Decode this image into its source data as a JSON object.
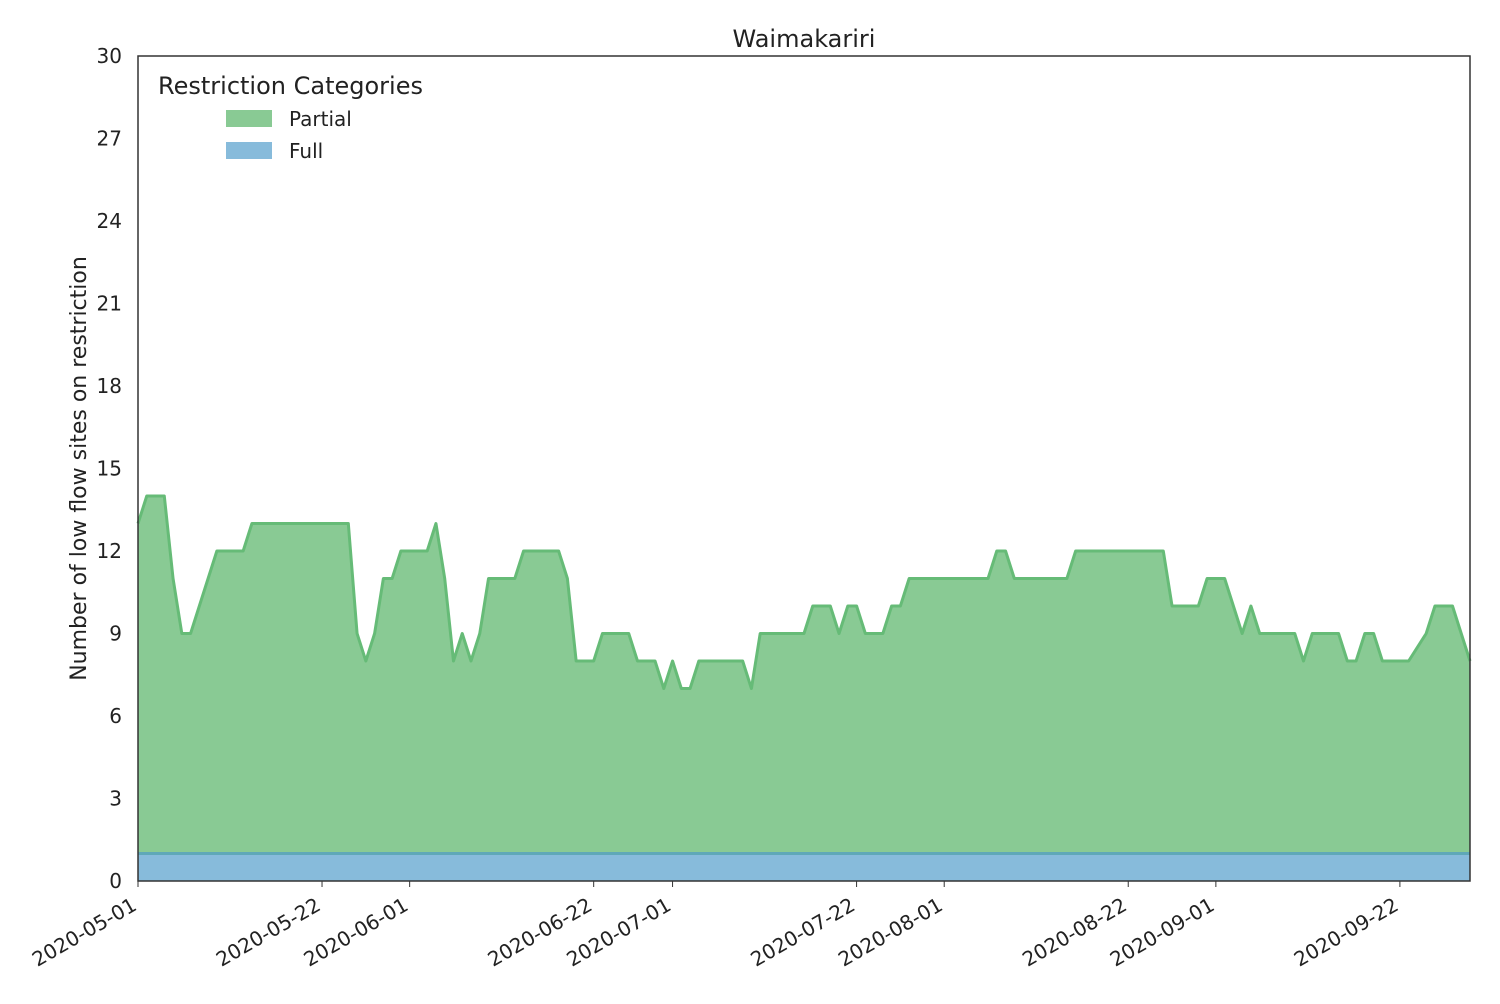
{
  "chart_data": {
    "type": "area",
    "stacked": true,
    "title": "Waimakariri",
    "xlabel": "",
    "ylabel": "Number of low flow sites on restriction",
    "x_start": "2020-05-01",
    "x_end": "2020-09-30",
    "ylim": [
      0,
      30
    ],
    "yticks": [
      0,
      3,
      6,
      9,
      12,
      15,
      18,
      21,
      24,
      27,
      30
    ],
    "xticks": [
      "2020-05-01",
      "2020-05-22",
      "2020-06-01",
      "2020-06-22",
      "2020-07-01",
      "2020-07-22",
      "2020-08-01",
      "2020-08-22",
      "2020-09-01",
      "2020-09-22"
    ],
    "grid": false,
    "legend": {
      "title": "Restriction Categories",
      "position": "top-left"
    },
    "series": [
      {
        "name": "Full",
        "color": "#87bbdb",
        "line_color": "#5fa8b8",
        "points": [
          [
            "2020-05-01",
            1
          ],
          [
            "2020-09-30",
            1
          ]
        ]
      },
      {
        "name": "Partial",
        "color": "#89ca94",
        "line_color": "#66bb77",
        "total_points": [
          [
            "2020-05-01",
            13
          ],
          [
            "2020-05-02",
            14
          ],
          [
            "2020-05-04",
            14
          ],
          [
            "2020-05-05",
            11
          ],
          [
            "2020-05-06",
            9
          ],
          [
            "2020-05-07",
            9
          ],
          [
            "2020-05-10",
            12
          ],
          [
            "2020-05-13",
            12
          ],
          [
            "2020-05-14",
            13
          ],
          [
            "2020-05-25",
            13
          ],
          [
            "2020-05-26",
            9
          ],
          [
            "2020-05-27",
            8
          ],
          [
            "2020-05-28",
            9
          ],
          [
            "2020-05-29",
            11
          ],
          [
            "2020-05-30",
            11
          ],
          [
            "2020-05-31",
            12
          ],
          [
            "2020-06-03",
            12
          ],
          [
            "2020-06-04",
            13
          ],
          [
            "2020-06-05",
            11
          ],
          [
            "2020-06-06",
            8
          ],
          [
            "2020-06-07",
            9
          ],
          [
            "2020-06-08",
            8
          ],
          [
            "2020-06-09",
            9
          ],
          [
            "2020-06-10",
            11
          ],
          [
            "2020-06-13",
            11
          ],
          [
            "2020-06-14",
            12
          ],
          [
            "2020-06-18",
            12
          ],
          [
            "2020-06-19",
            11
          ],
          [
            "2020-06-20",
            8
          ],
          [
            "2020-06-22",
            8
          ],
          [
            "2020-06-23",
            9
          ],
          [
            "2020-06-26",
            9
          ],
          [
            "2020-06-27",
            8
          ],
          [
            "2020-06-29",
            8
          ],
          [
            "2020-06-30",
            7
          ],
          [
            "2020-07-01",
            8
          ],
          [
            "2020-07-02",
            7
          ],
          [
            "2020-07-03",
            7
          ],
          [
            "2020-07-04",
            8
          ],
          [
            "2020-07-09",
            8
          ],
          [
            "2020-07-10",
            7
          ],
          [
            "2020-07-11",
            9
          ],
          [
            "2020-07-16",
            9
          ],
          [
            "2020-07-17",
            10
          ],
          [
            "2020-07-19",
            10
          ],
          [
            "2020-07-20",
            9
          ],
          [
            "2020-07-21",
            10
          ],
          [
            "2020-07-22",
            10
          ],
          [
            "2020-07-23",
            9
          ],
          [
            "2020-07-25",
            9
          ],
          [
            "2020-07-26",
            10
          ],
          [
            "2020-07-27",
            10
          ],
          [
            "2020-07-28",
            11
          ],
          [
            "2020-08-06",
            11
          ],
          [
            "2020-08-07",
            12
          ],
          [
            "2020-08-08",
            12
          ],
          [
            "2020-08-09",
            11
          ],
          [
            "2020-08-15",
            11
          ],
          [
            "2020-08-16",
            12
          ],
          [
            "2020-08-26",
            12
          ],
          [
            "2020-08-27",
            10
          ],
          [
            "2020-08-30",
            10
          ],
          [
            "2020-08-31",
            11
          ],
          [
            "2020-09-02",
            11
          ],
          [
            "2020-09-03",
            10
          ],
          [
            "2020-09-04",
            9
          ],
          [
            "2020-09-05",
            10
          ],
          [
            "2020-09-06",
            9
          ],
          [
            "2020-09-10",
            9
          ],
          [
            "2020-09-11",
            8
          ],
          [
            "2020-09-12",
            9
          ],
          [
            "2020-09-15",
            9
          ],
          [
            "2020-09-16",
            8
          ],
          [
            "2020-09-17",
            8
          ],
          [
            "2020-09-18",
            9
          ],
          [
            "2020-09-19",
            9
          ],
          [
            "2020-09-20",
            8
          ],
          [
            "2020-09-23",
            8
          ],
          [
            "2020-09-25",
            9
          ],
          [
            "2020-09-26",
            10
          ],
          [
            "2020-09-28",
            10
          ],
          [
            "2020-09-30",
            8
          ]
        ]
      }
    ]
  }
}
